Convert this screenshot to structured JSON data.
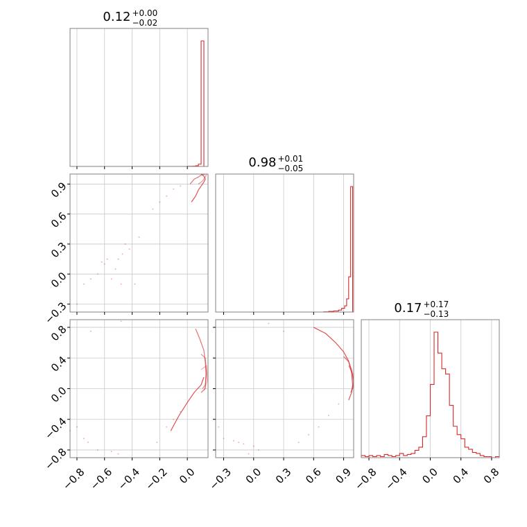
{
  "chart_data": {
    "type": "corner",
    "color": "#d62728",
    "params": [
      {
        "range": [
          -0.85,
          0.15
        ],
        "ticks": [
          -0.8,
          -0.6,
          -0.4,
          -0.2,
          0.0
        ],
        "tick_labels": [
          "−0.8",
          "−0.6",
          "−0.4",
          "−0.2",
          "0.0"
        ]
      },
      {
        "range": [
          -0.38,
          1.0
        ],
        "ticks": [
          -0.3,
          0.0,
          0.3,
          0.6,
          0.9
        ],
        "tick_labels": [
          "−0.3",
          "0.0",
          "0.3",
          "0.6",
          "0.9"
        ]
      },
      {
        "range": [
          -0.9,
          0.9
        ],
        "ticks": [
          -0.8,
          -0.4,
          0.0,
          0.4,
          0.8
        ],
        "tick_labels": [
          "−0.8",
          "−0.4",
          "0.0",
          "0.4",
          "0.8"
        ]
      }
    ],
    "titles": [
      {
        "median": "0.12",
        "plus": "+0.00",
        "minus": "−0.02"
      },
      {
        "median": "0.98",
        "plus": "+0.01",
        "minus": "−0.05"
      },
      {
        "median": "0.17",
        "plus": "+0.17",
        "minus": "−0.13"
      }
    ],
    "histograms": [
      {
        "edges": [
          -0.85,
          0.0,
          0.02,
          0.04,
          0.06,
          0.08,
          0.1,
          0.12,
          0.13,
          0.15
        ],
        "counts": [
          0,
          1,
          1,
          2,
          5,
          18,
          1000,
          0,
          0
        ]
      },
      {
        "edges": [
          -0.38,
          0.7,
          0.75,
          0.8,
          0.85,
          0.88,
          0.91,
          0.93,
          0.95,
          0.97,
          0.99,
          1.0
        ],
        "counts": [
          0,
          1,
          3,
          5,
          9,
          17,
          28,
          60,
          160,
          570,
          0
        ]
      },
      {
        "edges": [
          -0.9,
          -0.85,
          -0.8,
          -0.75,
          -0.7,
          -0.65,
          -0.6,
          -0.55,
          -0.5,
          -0.45,
          -0.4,
          -0.35,
          -0.3,
          -0.25,
          -0.2,
          -0.15,
          -0.1,
          -0.05,
          0.0,
          0.05,
          0.1,
          0.15,
          0.2,
          0.25,
          0.3,
          0.35,
          0.4,
          0.45,
          0.5,
          0.55,
          0.6,
          0.65,
          0.7,
          0.75,
          0.8,
          0.85,
          0.9
        ],
        "counts": [
          2,
          1,
          2,
          1,
          2,
          1,
          3,
          2,
          1,
          2,
          4,
          2,
          3,
          4,
          7,
          10,
          20,
          40,
          70,
          120,
          100,
          85,
          80,
          50,
          30,
          22,
          18,
          10,
          8,
          5,
          4,
          2,
          1,
          1,
          0,
          1
        ]
      }
    ],
    "scatter_1_0": [
      [
        -0.62,
        0.12
      ],
      [
        -0.58,
        0.15
      ],
      [
        -0.52,
        0.05
      ],
      [
        -0.47,
        0.2
      ],
      [
        -0.42,
        0.25
      ],
      [
        -0.55,
        -0.05
      ],
      [
        -0.65,
        0.0
      ],
      [
        -0.7,
        -0.05
      ],
      [
        -0.75,
        -0.1
      ],
      [
        -0.48,
        -0.1
      ],
      [
        -0.38,
        -0.1
      ],
      [
        -0.35,
        0.37
      ],
      [
        -0.8,
        -0.3
      ],
      [
        -0.6,
        0.1
      ],
      [
        -0.45,
        0.3
      ],
      [
        -0.5,
        0.15
      ],
      [
        -0.25,
        0.65
      ],
      [
        -0.2,
        0.72
      ],
      [
        -0.15,
        0.78
      ],
      [
        -0.1,
        0.85
      ],
      [
        -0.05,
        0.88
      ]
    ],
    "contour_1_0": [
      [
        [
          0.03,
          0.72
        ],
        [
          0.06,
          0.78
        ],
        [
          0.08,
          0.84
        ],
        [
          0.1,
          0.88
        ],
        [
          0.12,
          0.92
        ],
        [
          0.13,
          0.95
        ],
        [
          0.12,
          0.98
        ],
        [
          0.1,
          1.0
        ]
      ],
      [
        [
          0.02,
          0.9
        ],
        [
          0.05,
          0.95
        ],
        [
          0.08,
          0.97
        ],
        [
          0.1,
          0.99
        ],
        [
          0.13,
          1.0
        ]
      ],
      [
        [
          0.08,
          0.9
        ],
        [
          0.11,
          0.93
        ],
        [
          0.13,
          0.97
        ],
        [
          0.14,
          1.0
        ]
      ]
    ],
    "scatter_2_0": [
      [
        -0.8,
        -0.5
      ],
      [
        -0.75,
        -0.65
      ],
      [
        -0.65,
        -0.8
      ],
      [
        -0.55,
        -0.82
      ],
      [
        -0.5,
        -0.85
      ],
      [
        -0.7,
        0.75
      ],
      [
        -0.48,
        0.88
      ],
      [
        -0.72,
        -0.7
      ],
      [
        -0.85,
        -0.55
      ],
      [
        -0.22,
        -0.7
      ],
      [
        -0.15,
        -0.5
      ],
      [
        -0.1,
        -0.4
      ],
      [
        -0.05,
        -0.3
      ]
    ],
    "contour_2_0": [
      [
        [
          -0.12,
          -0.55
        ],
        [
          -0.06,
          -0.35
        ],
        [
          0.0,
          -0.18
        ],
        [
          0.05,
          -0.05
        ],
        [
          0.1,
          0.05
        ],
        [
          0.12,
          0.15
        ]
      ],
      [
        [
          0.06,
          0.78
        ],
        [
          0.09,
          0.65
        ],
        [
          0.12,
          0.5
        ],
        [
          0.13,
          0.35
        ],
        [
          0.135,
          0.2
        ],
        [
          0.13,
          0.0
        ],
        [
          0.1,
          -0.05
        ]
      ],
      [
        [
          0.1,
          0.45
        ],
        [
          0.13,
          0.4
        ],
        [
          0.14,
          0.2
        ],
        [
          0.13,
          0.05
        ],
        [
          0.11,
          0.0
        ]
      ],
      [
        [
          0.1,
          0.25
        ],
        [
          0.14,
          0.3
        ],
        [
          0.145,
          0.1
        ],
        [
          0.12,
          -0.02
        ]
      ]
    ],
    "scatter_2_1": [
      [
        -0.35,
        -0.5
      ],
      [
        -0.3,
        -0.65
      ],
      [
        -0.2,
        -0.68
      ],
      [
        -0.1,
        -0.72
      ],
      [
        0.0,
        -0.75
      ],
      [
        0.05,
        -0.8
      ],
      [
        -0.05,
        -0.85
      ],
      [
        0.15,
        0.85
      ],
      [
        0.3,
        0.75
      ],
      [
        -0.15,
        -0.7
      ],
      [
        0.45,
        -0.7
      ],
      [
        0.55,
        -0.6
      ],
      [
        0.65,
        -0.5
      ],
      [
        0.75,
        -0.35
      ],
      [
        0.85,
        -0.2
      ]
    ],
    "contour_2_1": [
      [
        [
          0.6,
          0.8
        ],
        [
          0.72,
          0.72
        ],
        [
          0.82,
          0.6
        ],
        [
          0.9,
          0.48
        ],
        [
          0.95,
          0.36
        ],
        [
          0.98,
          0.2
        ],
        [
          0.99,
          0.05
        ],
        [
          0.98,
          -0.05
        ],
        [
          0.95,
          -0.15
        ]
      ],
      [
        [
          0.9,
          0.42
        ],
        [
          0.95,
          0.35
        ],
        [
          0.98,
          0.25
        ],
        [
          1.0,
          0.1
        ],
        [
          0.99,
          0.0
        ],
        [
          0.97,
          -0.05
        ]
      ],
      [
        [
          0.95,
          0.3
        ],
        [
          0.99,
          0.2
        ],
        [
          1.0,
          0.05
        ],
        [
          0.98,
          -0.02
        ]
      ]
    ]
  }
}
